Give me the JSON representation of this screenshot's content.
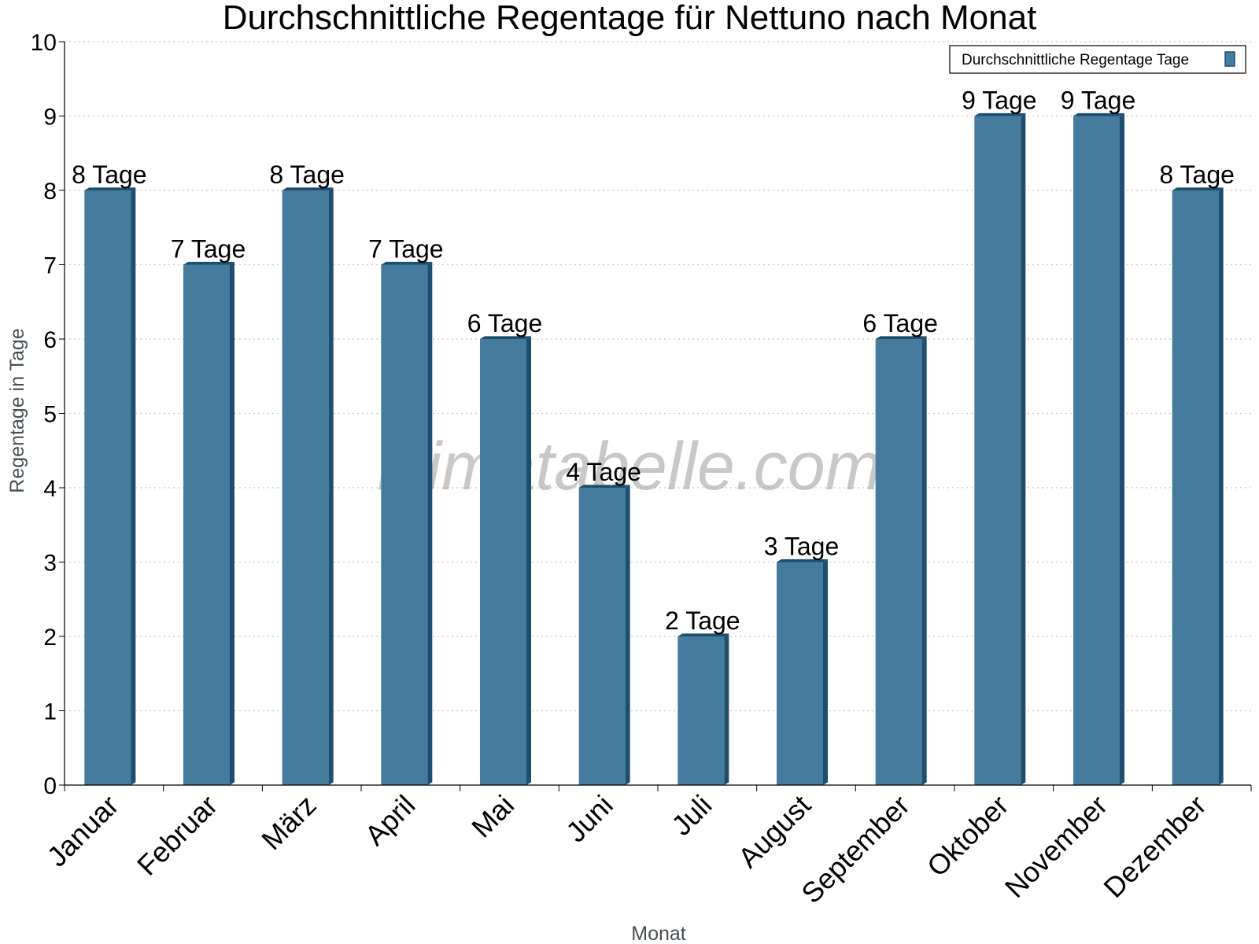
{
  "watermark": "klimatabelle.com",
  "legend": {
    "label": "Durchschnittliche Regentage Tage"
  },
  "colors": {
    "bar": "#457b9d",
    "bar_side": "#1d4e6e",
    "bar_top": "#1d4e6e",
    "grid": "#c8c8c8",
    "axis": "#000000"
  },
  "chart_data": {
    "type": "bar",
    "title": "Durchschnittliche Regentage für Nettuno nach Monat",
    "xlabel": "Monat",
    "ylabel": "Regentage in Tage",
    "ylim": [
      0,
      10
    ],
    "yticks": [
      "0",
      "1",
      "2",
      "3",
      "4",
      "5",
      "6",
      "7",
      "8",
      "9",
      "10"
    ],
    "grid": true,
    "legend_position": "top-right",
    "categories": [
      "Januar",
      "Februar",
      "März",
      "April",
      "Mai",
      "Juni",
      "Juli",
      "August",
      "September",
      "Oktober",
      "November",
      "Dezember"
    ],
    "series": [
      {
        "name": "Durchschnittliche Regentage Tage",
        "values": [
          8,
          7,
          8,
          7,
          6,
          4,
          2,
          3,
          6,
          9,
          9,
          8
        ],
        "labels": [
          "8 Tage",
          "7 Tage",
          "8 Tage",
          "7 Tage",
          "6 Tage",
          "4 Tage",
          "2 Tage",
          "3 Tage",
          "6 Tage",
          "9 Tage",
          "9 Tage",
          "8 Tage"
        ]
      }
    ]
  }
}
